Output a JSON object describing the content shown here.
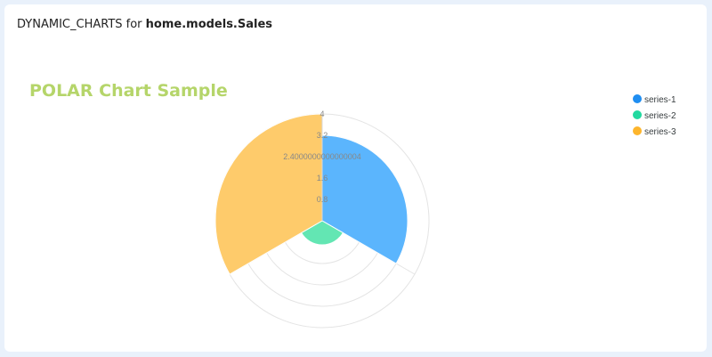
{
  "header": {
    "prefix": "DYNAMIC_CHARTS for ",
    "model": "home.models.Sales"
  },
  "colors": {
    "title": "#b5d56a",
    "grid": "#e4e4e4",
    "tick": "#888888"
  },
  "chart_data": {
    "type": "polar",
    "title": "POLAR Chart Sample",
    "r_ticks": [
      "0.8",
      "1.6",
      "2.4000000000000004",
      "3.2",
      "4"
    ],
    "r_max": 4,
    "grid": true,
    "legend_position": "top-right",
    "series": [
      {
        "name": "series-1",
        "value": 3.2,
        "color": "#5bb5fd",
        "legend_color": "#1f8ef1"
      },
      {
        "name": "series-2",
        "value": 0.9,
        "color": "#63e6b3",
        "legend_color": "#22d9a0"
      },
      {
        "name": "series-3",
        "value": 4.0,
        "color": "#fecb6b",
        "legend_color": "#fdb52c"
      }
    ]
  }
}
